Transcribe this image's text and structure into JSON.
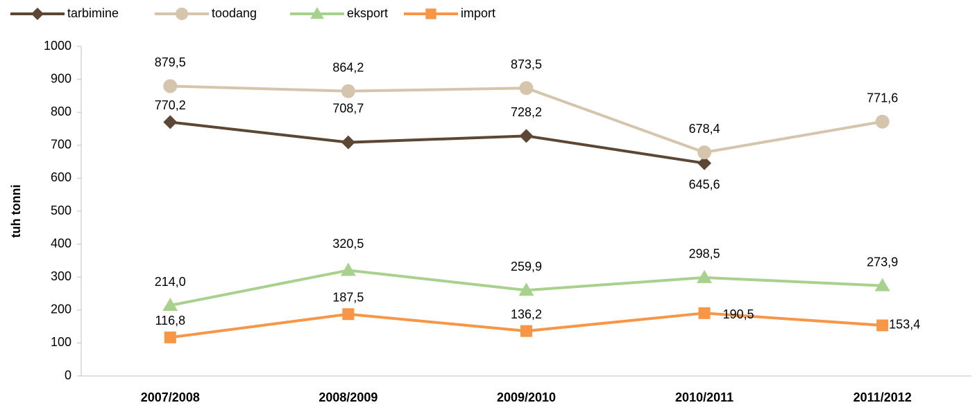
{
  "chart_data": {
    "type": "line",
    "y_label": "tuh tonni",
    "categories": [
      "2007/2008",
      "2008/2009",
      "2009/2010",
      "2010/2011",
      "2011/2012"
    ],
    "ylim": [
      0,
      1000
    ],
    "yticks": [
      0,
      100,
      200,
      300,
      400,
      500,
      600,
      700,
      800,
      900,
      1000
    ],
    "grid": false,
    "legend": "top",
    "series": [
      {
        "name": "tarbimine",
        "color": "#5b4734",
        "marker": "diamond",
        "values": [
          770.2,
          708.7,
          728.2,
          645.6,
          null
        ],
        "value_labels": [
          "770,2",
          "708,7",
          "728,2",
          "645,6",
          null
        ]
      },
      {
        "name": "toodang",
        "color": "#d5c5ad",
        "marker": "circle",
        "values": [
          879.5,
          864.2,
          873.5,
          678.4,
          771.6
        ],
        "value_labels": [
          "879,5",
          "864,2",
          "873,5",
          "678,4",
          "771,6"
        ]
      },
      {
        "name": "eksport",
        "color": "#a9d18e",
        "marker": "triangle",
        "values": [
          214.0,
          320.5,
          259.9,
          298.5,
          273.9
        ],
        "value_labels": [
          "214,0",
          "320,5",
          "259,9",
          "298,5",
          "273,9"
        ]
      },
      {
        "name": "import",
        "color": "#f79646",
        "marker": "square",
        "values": [
          116.8,
          187.5,
          136.2,
          190.5,
          153.4
        ],
        "value_labels": [
          "116,8",
          "187,5",
          "136,2",
          "190,5",
          "153,4"
        ]
      }
    ]
  }
}
